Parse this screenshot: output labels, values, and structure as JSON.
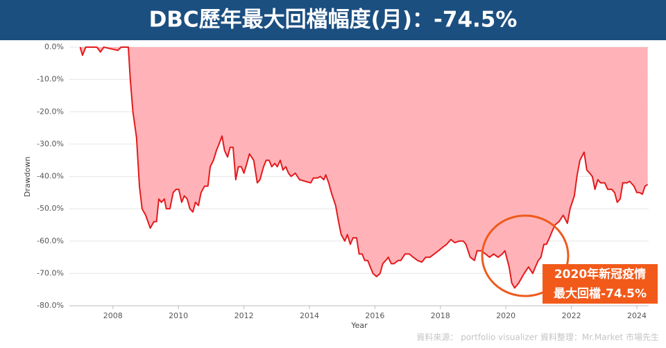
{
  "chart_data": {
    "type": "area",
    "title": "DBC歷年最大回檔幅度(月)：-74.5%",
    "x_label": "Year",
    "y_label": "Drawdown",
    "x": [
      2007.0,
      2007.07,
      2007.17,
      2007.51,
      2007.62,
      2007.72,
      2008.15,
      2008.25,
      2008.47,
      2008.53,
      2008.61,
      2008.72,
      2008.81,
      2008.89,
      2009.0,
      2009.14,
      2009.25,
      2009.33,
      2009.4,
      2009.48,
      2009.57,
      2009.63,
      2009.74,
      2009.84,
      2009.93,
      2010.01,
      2010.1,
      2010.18,
      2010.27,
      2010.35,
      2010.44,
      2010.52,
      2010.61,
      2010.69,
      2010.8,
      2010.9,
      2010.97,
      2011.07,
      2011.16,
      2011.24,
      2011.33,
      2011.41,
      2011.5,
      2011.58,
      2011.67,
      2011.75,
      2011.83,
      2011.92,
      2012.0,
      2012.09,
      2012.17,
      2012.3,
      2012.41,
      2012.49,
      2012.6,
      2012.68,
      2012.77,
      2012.85,
      2012.94,
      2013.02,
      2013.11,
      2013.19,
      2013.28,
      2013.36,
      2013.44,
      2013.57,
      2013.7,
      2013.87,
      2014.04,
      2014.12,
      2014.25,
      2014.33,
      2014.44,
      2014.5,
      2014.59,
      2014.67,
      2014.8,
      2014.89,
      2014.97,
      2015.08,
      2015.16,
      2015.25,
      2015.33,
      2015.44,
      2015.52,
      2015.61,
      2015.69,
      2015.78,
      2015.86,
      2015.94,
      2016.05,
      2016.16,
      2016.24,
      2016.33,
      2016.41,
      2016.5,
      2016.58,
      2016.71,
      2016.79,
      2016.92,
      2017.05,
      2017.17,
      2017.3,
      2017.43,
      2017.55,
      2017.68,
      2017.81,
      2017.94,
      2018.06,
      2018.19,
      2018.32,
      2018.44,
      2018.57,
      2018.7,
      2018.78,
      2018.91,
      2019.04,
      2019.12,
      2019.25,
      2019.38,
      2019.5,
      2019.63,
      2019.76,
      2019.89,
      2019.97,
      2020.1,
      2020.18,
      2020.27,
      2020.39,
      2020.56,
      2020.69,
      2020.82,
      2020.9,
      2020.99,
      2021.07,
      2021.16,
      2021.24,
      2021.33,
      2021.41,
      2021.5,
      2021.62,
      2021.75,
      2021.88,
      2021.96,
      2022.09,
      2022.17,
      2022.26,
      2022.39,
      2022.47,
      2022.56,
      2022.64,
      2022.72,
      2022.81,
      2022.89,
      2023.02,
      2023.11,
      2023.23,
      2023.32,
      2023.4,
      2023.49,
      2023.57,
      2023.7,
      2023.78,
      2023.91,
      2024.0,
      2024.08,
      2024.17,
      2024.25,
      2024.33
    ],
    "series": [
      {
        "color": "#e31a1c",
        "fill": "#ffb3b8",
        "values": [
          0,
          -2.5,
          0,
          0,
          -1.5,
          0,
          -1,
          0,
          0,
          -10,
          -20,
          -28,
          -43,
          -50,
          -52,
          -56,
          -54,
          -54,
          -47,
          -48,
          -47,
          -50,
          -50,
          -45,
          -44,
          -44,
          -48,
          -46,
          -47,
          -50,
          -51,
          -48,
          -49,
          -45,
          -43,
          -43,
          -37,
          -35,
          -32,
          -30,
          -27.5,
          -32,
          -34,
          -31,
          -31,
          -41,
          -37,
          -37,
          -39,
          -36,
          -33,
          -35,
          -42,
          -41,
          -37,
          -35,
          -35,
          -37,
          -36,
          -37,
          -35,
          -38,
          -37,
          -39,
          -40,
          -39,
          -41,
          -41.5,
          -42,
          -40.5,
          -40.5,
          -40,
          -41,
          -39.5,
          -42,
          -45,
          -49,
          -54,
          -58,
          -60,
          -58,
          -61,
          -59,
          -59,
          -64,
          -64,
          -66,
          -66,
          -68,
          -70,
          -71,
          -70,
          -67,
          -66,
          -65,
          -67,
          -67,
          -66,
          -66,
          -64,
          -64,
          -65,
          -66,
          -66.5,
          -65,
          -65,
          -64,
          -63,
          -62,
          -61,
          -59.5,
          -60.5,
          -60,
          -60,
          -61,
          -65,
          -66,
          -63,
          -63,
          -64,
          -65,
          -64,
          -65,
          -64,
          -63,
          -68,
          -73,
          -74.5,
          -73,
          -70,
          -68,
          -70,
          -68,
          -66,
          -65,
          -61,
          -61,
          -59,
          -57,
          -55,
          -54,
          -52,
          -54.5,
          -50,
          -46,
          -40,
          -35,
          -32.5,
          -38,
          -39,
          -40,
          -44,
          -41,
          -42,
          -42,
          -44,
          -44,
          -45,
          -48,
          -47,
          -42,
          -42,
          -41.5,
          -43,
          -45,
          -45,
          -45.5,
          -43,
          -42.5
        ]
      }
    ],
    "xlim": [
      2006.67,
      2024.36
    ],
    "xticks": [
      2008,
      2010,
      2012,
      2014,
      2016,
      2018,
      2020,
      2022,
      2024
    ],
    "ylim": [
      -80,
      0
    ],
    "yticks": [
      {
        "value": 0,
        "label": "0.0%"
      },
      {
        "value": -10,
        "label": "-10.0%"
      },
      {
        "value": -20,
        "label": "-20.0%"
      },
      {
        "value": -30,
        "label": "-30.0%"
      },
      {
        "value": -40,
        "label": "-40.0%"
      },
      {
        "value": -50,
        "label": "-50.0%"
      },
      {
        "value": -60,
        "label": "-60.0%"
      },
      {
        "value": -70,
        "label": "-70.0%"
      },
      {
        "value": -80,
        "label": "-80.0%"
      }
    ],
    "grid": true,
    "annotations": [
      "2020年新冠疫情",
      "最大回檔-74.5%"
    ],
    "source": "資料來源：  portfolio visualizer    資料整理：Mr.Market 市場先生"
  }
}
